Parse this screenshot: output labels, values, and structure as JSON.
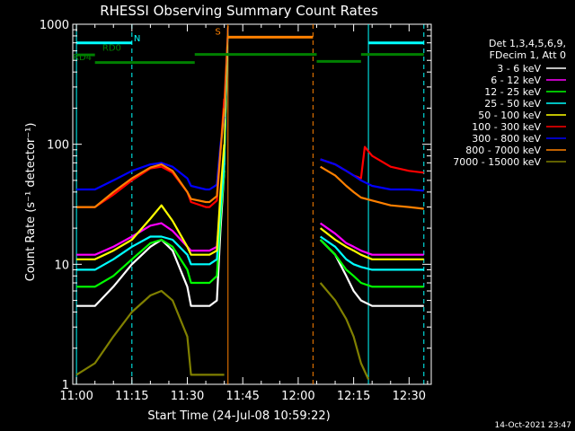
{
  "chart_data": {
    "type": "line",
    "title": "RHESSI Observing Summary Count Rates",
    "xlabel": "Start Time (24-Jul-08 10:59:22)",
    "ylabel": "Count Rate (s⁻¹ detector⁻¹)",
    "x_unit": "minutes after 11:00 UT",
    "xlim": [
      -1,
      96
    ],
    "ylim": [
      1,
      1000
    ],
    "yscale": "log",
    "x_ticks": [
      {
        "value": 0,
        "label": "11:00"
      },
      {
        "value": 15,
        "label": "11:15"
      },
      {
        "value": 30,
        "label": "11:30"
      },
      {
        "value": 45,
        "label": "11:45"
      },
      {
        "value": 60,
        "label": "12:00"
      },
      {
        "value": 75,
        "label": "12:15"
      },
      {
        "value": 90,
        "label": "12:30"
      }
    ],
    "y_ticks": [
      {
        "value": 1,
        "label": "1"
      },
      {
        "value": 10,
        "label": "10"
      },
      {
        "value": 100,
        "label": "100"
      },
      {
        "value": 1000,
        "label": "1000"
      }
    ],
    "legend_header": [
      "Det 1,3,4,5,6,9,",
      "FDecim 1, Att 0"
    ],
    "legend_position": "right",
    "series": [
      {
        "name": "3 - 6 keV",
        "color": "#ffffff",
        "x": [
          0,
          5,
          10,
          15,
          20,
          23,
          26,
          30,
          31,
          35,
          36,
          38,
          39,
          40
        ],
        "y": [
          4.5,
          4.5,
          6.5,
          10,
          14,
          16,
          13,
          6.5,
          4.5,
          4.5,
          4.5,
          5,
          20,
          60
        ]
      },
      {
        "name": "6 - 12 keV",
        "color": "#ff00ff",
        "x": [
          0,
          5,
          10,
          15,
          20,
          23,
          26,
          30,
          31,
          35,
          36,
          38,
          39,
          40
        ],
        "y": [
          12,
          12,
          14,
          17,
          21,
          22,
          19,
          14,
          13,
          13,
          13,
          14,
          30,
          80
        ]
      },
      {
        "name": "12 - 25 keV",
        "color": "#00ff00",
        "x": [
          0,
          5,
          10,
          15,
          20,
          23,
          26,
          30,
          31,
          35,
          36,
          38,
          39,
          40
        ],
        "y": [
          6.5,
          6.5,
          8,
          11,
          15,
          16,
          14,
          9,
          7,
          7,
          7,
          8,
          25,
          60
        ]
      },
      {
        "name": "25 - 50 keV",
        "color": "#00ffff",
        "x": [
          0,
          5,
          10,
          15,
          20,
          23,
          26,
          30,
          31,
          35,
          36,
          38,
          39,
          40
        ],
        "y": [
          9,
          9,
          11,
          14,
          17,
          17,
          16,
          12,
          10,
          10,
          10,
          11,
          30,
          70
        ]
      },
      {
        "name": "50 - 100 keV",
        "color": "#ffff00",
        "x": [
          0,
          5,
          10,
          15,
          20,
          23,
          26,
          30,
          31,
          35,
          36,
          38,
          39,
          40
        ],
        "y": [
          11,
          11,
          13,
          16,
          24,
          31,
          23,
          14,
          12,
          12,
          12,
          13,
          40,
          100
        ]
      },
      {
        "name": "100 - 300 keV",
        "color": "#ff0000",
        "x": [
          0,
          5,
          10,
          15,
          20,
          23,
          26,
          30,
          31,
          35,
          36,
          38,
          39,
          40
        ],
        "y": [
          30,
          30,
          38,
          50,
          63,
          65,
          58,
          40,
          33,
          30,
          30,
          34,
          90,
          240
        ]
      },
      {
        "name": "300 - 800 keV",
        "color": "#0000ff",
        "x": [
          0,
          5,
          10,
          15,
          20,
          23,
          26,
          30,
          31,
          35,
          36,
          38,
          39,
          40
        ],
        "y": [
          42,
          42,
          50,
          60,
          68,
          70,
          65,
          52,
          45,
          42,
          42,
          46,
          100,
          170
        ]
      },
      {
        "name": "800 - 7000 keV",
        "color": "#ff8000",
        "x": [
          0,
          5,
          10,
          15,
          20,
          23,
          26,
          30,
          31,
          35,
          36,
          38,
          39,
          40
        ],
        "y": [
          30,
          30,
          40,
          52,
          64,
          68,
          60,
          40,
          35,
          33,
          33,
          37,
          90,
          200
        ]
      },
      {
        "name": "7000 - 15000 keV",
        "color": "#808000",
        "x": [
          0,
          5,
          10,
          15,
          20,
          23,
          26,
          30,
          31,
          35,
          36,
          38,
          39,
          40
        ],
        "y": [
          1.2,
          1.5,
          2.5,
          4,
          5.5,
          6,
          5,
          2.5,
          1.2,
          1.2,
          1.2,
          1.2,
          1.2,
          1.2
        ]
      }
    ],
    "series_after_gap": [
      {
        "name": "3 - 6 keV",
        "x": [
          66,
          70,
          73,
          75,
          77,
          80,
          85,
          90,
          94
        ],
        "y": [
          16,
          12,
          8,
          6,
          5,
          4.5,
          4.5,
          4.5,
          4.5
        ]
      },
      {
        "name": "6 - 12 keV",
        "x": [
          66,
          70,
          73,
          75,
          77,
          80,
          85,
          90,
          94
        ],
        "y": [
          22,
          18,
          15,
          14,
          13,
          12,
          12,
          12,
          12
        ]
      },
      {
        "name": "12 - 25 keV",
        "x": [
          66,
          70,
          73,
          75,
          77,
          80,
          85,
          90,
          94
        ],
        "y": [
          16,
          12,
          9,
          8,
          7,
          6.5,
          6.5,
          6.5,
          6.5
        ]
      },
      {
        "name": "25 - 50 keV",
        "x": [
          66,
          70,
          73,
          75,
          77,
          80,
          85,
          90,
          94
        ],
        "y": [
          17,
          14,
          11,
          10,
          9.5,
          9,
          9,
          9,
          9
        ]
      },
      {
        "name": "50 - 100 keV",
        "x": [
          66,
          70,
          73,
          75,
          77,
          80,
          85,
          90,
          94
        ],
        "y": [
          20,
          16,
          14,
          13,
          12,
          11,
          11,
          11,
          11
        ]
      },
      {
        "name": "100 - 300 keV",
        "x": [
          66,
          70,
          73,
          75,
          77,
          78,
          80,
          85,
          90,
          94
        ],
        "y": [
          75,
          68,
          60,
          55,
          52,
          95,
          80,
          65,
          60,
          58
        ]
      },
      {
        "name": "300 - 800 keV",
        "x": [
          66,
          70,
          73,
          75,
          77,
          80,
          85,
          90,
          94
        ],
        "y": [
          75,
          68,
          60,
          55,
          50,
          45,
          42,
          42,
          41
        ]
      },
      {
        "name": "800 - 7000 keV",
        "x": [
          66,
          70,
          73,
          75,
          77,
          80,
          85,
          90,
          94
        ],
        "y": [
          65,
          55,
          45,
          40,
          36,
          34,
          31,
          30,
          29
        ]
      },
      {
        "name": "7000 - 15000 keV",
        "x": [
          66,
          70,
          73,
          75,
          77,
          79
        ],
        "y": [
          7,
          5,
          3.5,
          2.5,
          1.5,
          1.1
        ]
      }
    ],
    "annotations": [
      {
        "text": "N",
        "color": "#00ffff",
        "x": 15.5,
        "y": 720
      },
      {
        "text": "RD0",
        "color": "#008000",
        "x": 7,
        "y": 600
      },
      {
        "text": "RD4",
        "color": "#008000",
        "x": -1,
        "y": 500
      },
      {
        "text": "S",
        "color": "#ff8000",
        "x": 37.5,
        "y": 820
      }
    ],
    "flag_bars": [
      {
        "name": "N",
        "color": "#00ffff",
        "y": 700,
        "segments": [
          [
            0,
            15
          ],
          [
            79,
            94
          ]
        ]
      },
      {
        "name": "RD0",
        "color": "#008000",
        "y": 555,
        "segments": [
          [
            0,
            5
          ]
        ]
      },
      {
        "name": "RD4",
        "color": "#008000",
        "y": 480,
        "segments": [
          [
            5,
            32
          ]
        ]
      },
      {
        "name": "upper flag",
        "color": "#008000",
        "y": 560,
        "segments": [
          [
            32,
            65
          ],
          [
            77,
            94
          ]
        ]
      },
      {
        "name": "lower flag",
        "color": "#008000",
        "y": 490,
        "segments": [
          [
            65,
            77
          ]
        ]
      },
      {
        "name": "S",
        "color": "#ff8000",
        "y": 780,
        "segments": [
          [
            41,
            64
          ]
        ]
      }
    ],
    "vertical_markers": [
      {
        "x": 0,
        "color": "#00ffff",
        "style": "solid"
      },
      {
        "x": 15,
        "color": "#00ffff",
        "style": "dashed"
      },
      {
        "x": 41,
        "color": "#ff8000",
        "style": "solid"
      },
      {
        "x": 64,
        "color": "#ff8000",
        "style": "dashed"
      },
      {
        "x": 79,
        "color": "#00ffff",
        "style": "solid"
      },
      {
        "x": 94,
        "color": "#00ffff",
        "style": "dashed"
      }
    ],
    "footer_timestamp": "14-Oct-2021 23:47"
  }
}
